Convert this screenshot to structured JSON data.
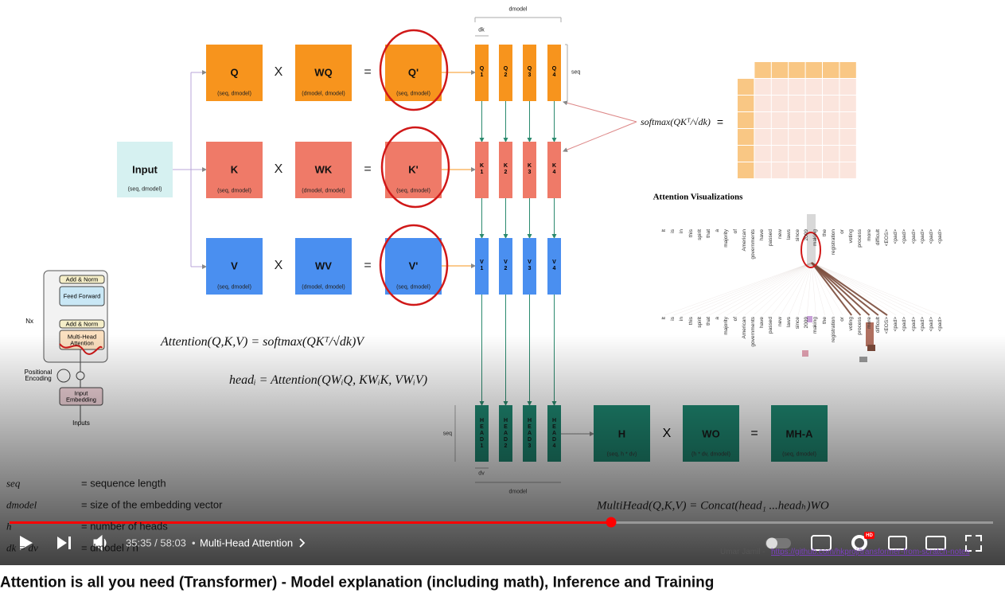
{
  "player": {
    "title": "Attention is all you need (Transformer) - Model explanation (including math), Inference and Training",
    "time": "35:35 / 58:03",
    "separator": "•",
    "chapter": "Multi-Head Attention",
    "credit_name": "Umar Jamil -",
    "credit_url": "https://github.com/hkproj/transformer-from-scratch-notes",
    "quality": "HD"
  },
  "diagram": {
    "dmodel_top": "dmodel",
    "dk": "dk",
    "seq_top": "seq",
    "input": {
      "label": "Input",
      "shape": "(seq, dmodel)"
    },
    "rows": [
      {
        "in": "Q",
        "in_shape": "(seq, dmodel)",
        "op": "X",
        "w": "WQ",
        "w_shape": "(dmodel, dmodel)",
        "eq": "=",
        "out": "Q'",
        "out_shape": "(seq, dmodel)",
        "splits": [
          "Q1",
          "Q2",
          "Q3",
          "Q4"
        ]
      },
      {
        "in": "K",
        "in_shape": "(seq, dmodel)",
        "op": "X",
        "w": "WK",
        "w_shape": "(dmodel, dmodel)",
        "eq": "=",
        "out": "K'",
        "out_shape": "(seq, dmodel)",
        "splits": [
          "K1",
          "K2",
          "K3",
          "K4"
        ]
      },
      {
        "in": "V",
        "in_shape": "(seq, dmodel)",
        "op": "X",
        "w": "WV",
        "w_shape": "(dmodel, dmodel)",
        "eq": "=",
        "out": "V'",
        "out_shape": "(seq, dmodel)",
        "splits": [
          "V1",
          "V2",
          "V3",
          "V4"
        ]
      }
    ],
    "softmax": "softmax(QKᵀ/√dk)",
    "softmax_eq": "=",
    "vis": {
      "title": "Attention Visualizations",
      "words": [
        "It",
        "is",
        "in",
        "this",
        "spirit",
        "that",
        "a",
        "majority",
        "of",
        "American",
        "governments",
        "have",
        "passed",
        "new",
        "laws",
        "since",
        "2009",
        "making",
        "the",
        "registration",
        "or",
        "voting",
        "process",
        "more",
        "difficult",
        "<EOS>",
        "<pad>",
        "<pad>",
        "<pad>",
        "<pad>",
        "<pad>",
        "<pad>"
      ]
    },
    "formulas": [
      "Attention(Q,K,V) = softmax(QKᵀ/√dk)V",
      "headᵢ = Attention(QWᵢQ, KWᵢK, VWᵢV)",
      "MultiHead(Q,K,V) = Concat(head₁ ...headₕ)WO"
    ],
    "heads": {
      "labels": [
        "HEAD1",
        "HEAD2",
        "HEAD3",
        "HEAD4"
      ],
      "seq": "seq",
      "dv": "dv",
      "dmodel": "dmodel"
    },
    "output": {
      "h": "H",
      "h_shape": "(seq, h * dv)",
      "op": "X",
      "wo": "WO",
      "wo_shape": "(h * dv, dmodel)",
      "eq": "=",
      "mha": "MH-A",
      "mha_shape": "(seq, dmodel)"
    },
    "legend": [
      {
        "symbol": "seq",
        "meaning": "= sequence length"
      },
      {
        "symbol": "dmodel",
        "meaning": "= size of the embedding vector"
      },
      {
        "symbol": "h",
        "meaning": "= number of heads"
      },
      {
        "symbol": "dk = dv",
        "meaning": "= dmodel / h"
      }
    ],
    "block": {
      "add_norm_top": "Add & Norm",
      "ff": "Feed Forward",
      "add_norm_bottom": "Add & Norm",
      "mha": "Multi-Head Attention",
      "nx": "Nx",
      "pos_enc": "Positional Encoding",
      "input_emb": "Input Embedding",
      "inputs": "Inputs"
    }
  }
}
